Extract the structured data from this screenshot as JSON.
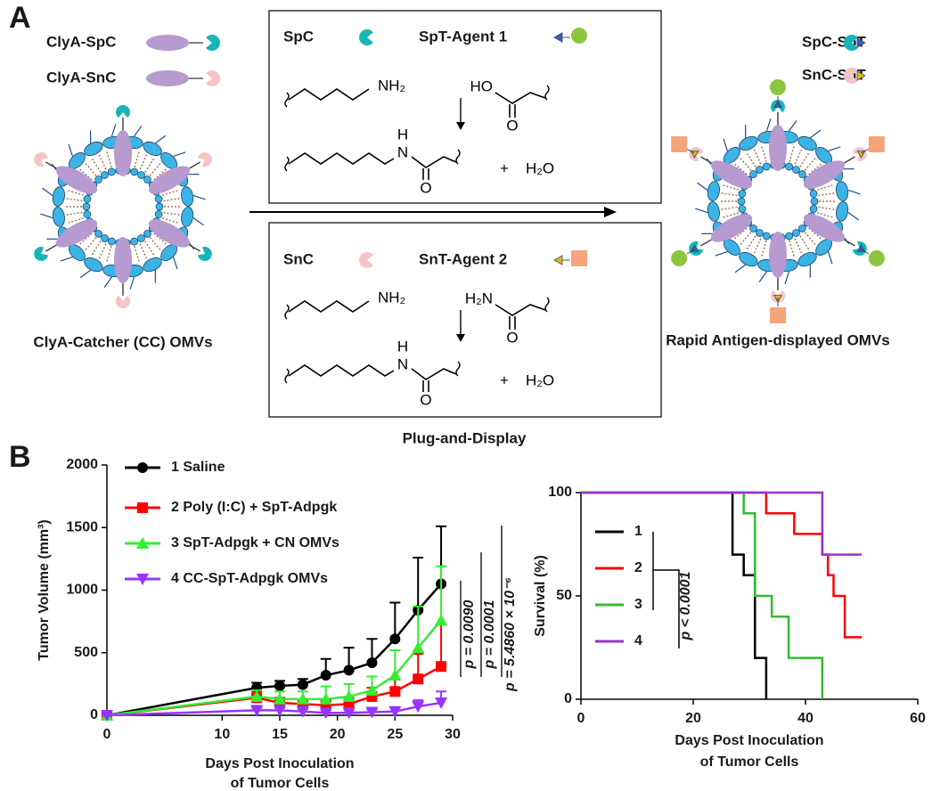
{
  "panel_labels": [
    "A",
    "B"
  ],
  "panel_a": {
    "left": {
      "legend": [
        "ClyA-SpC",
        "ClyA-SnC"
      ],
      "caption": "ClyA-Catcher (CC) OMVs"
    },
    "box1": {
      "catcher": "SpC",
      "tag": "SpT-Agent 1",
      "amine": "NH₂",
      "acid": "HO",
      "oxygen": "O",
      "product_h": "H",
      "product_n": "N",
      "product_o": "O",
      "plus": "+",
      "water": "H₂O"
    },
    "box2": {
      "catcher": "SnC",
      "tag": "SnT-Agent 2",
      "amine": "NH₂",
      "amide": "H₂N",
      "oxygen": "O",
      "product_h": "H",
      "product_n": "N",
      "product_o": "O",
      "plus": "+",
      "water": "H₂O"
    },
    "process": "Plug-and-Display",
    "right": {
      "legend": [
        "SpC-SpT",
        "SnC-SnT"
      ],
      "caption": "Rapid Antigen-displayed OMVs"
    }
  },
  "chart_data": [
    {
      "type": "line",
      "y_label": "Tumor Volume (mm³)",
      "x_label": [
        "Days Post Inoculation",
        "of Tumor Cells"
      ],
      "x": [
        0,
        13,
        15,
        17,
        19,
        21,
        23,
        25,
        27,
        29
      ],
      "series": [
        {
          "name": "1 Saline",
          "color": "#000000",
          "marker": "circle",
          "values": [
            0,
            220,
            235,
            245,
            320,
            360,
            420,
            610,
            840,
            1050
          ],
          "errors": [
            0,
            40,
            40,
            45,
            130,
            180,
            190,
            290,
            420,
            460
          ]
        },
        {
          "name": "2 Poly (I:C) + SpT-Adpgk",
          "color": "#ff0000",
          "marker": "square",
          "values": [
            0,
            140,
            100,
            90,
            80,
            90,
            150,
            190,
            290,
            390
          ],
          "errors": [
            0,
            50,
            40,
            40,
            40,
            50,
            70,
            100,
            200,
            340
          ]
        },
        {
          "name": "3 SpT-Adpgk + CN OMVs",
          "color": "#33ee33",
          "marker": "triangle-up",
          "values": [
            0,
            150,
            130,
            130,
            130,
            150,
            200,
            320,
            540,
            760
          ],
          "errors": [
            0,
            50,
            60,
            60,
            100,
            100,
            110,
            200,
            330,
            430
          ]
        },
        {
          "name": "4 CC-SpT-Adpgk OMVs",
          "color": "#9933ff",
          "marker": "triangle-down",
          "values": [
            0,
            40,
            40,
            30,
            20,
            20,
            25,
            30,
            70,
            100
          ],
          "errors": [
            0,
            20,
            20,
            20,
            20,
            20,
            20,
            30,
            50,
            90
          ]
        }
      ],
      "xlim": [
        0,
        30
      ],
      "xticks": [
        0,
        10,
        15,
        20,
        25,
        30
      ],
      "ylim": [
        0,
        2000
      ],
      "yticks": [
        0,
        500,
        1000,
        1500,
        2000
      ],
      "annotations": [
        "p = 0.0090",
        "p = 0.0001",
        "p = 5.4860 × 10⁻⁶"
      ]
    },
    {
      "type": "line",
      "y_label": "Survival (%)",
      "x_label": [
        "Days Post Inoculation",
        "of Tumor Cells"
      ],
      "series": [
        {
          "name": "1",
          "color": "#000000",
          "x": [
            0,
            27,
            27,
            29,
            29,
            31,
            31,
            33,
            33
          ],
          "values": [
            100,
            100,
            70,
            70,
            60,
            60,
            20,
            20,
            0
          ]
        },
        {
          "name": "2",
          "color": "#ff0000",
          "x": [
            0,
            33,
            33,
            38,
            38,
            43,
            43,
            44,
            44,
            45,
            45,
            47,
            47,
            50
          ],
          "values": [
            100,
            100,
            90,
            90,
            80,
            80,
            70,
            70,
            60,
            60,
            50,
            50,
            30,
            30
          ]
        },
        {
          "name": "3",
          "color": "#33bb33",
          "x": [
            0,
            29,
            29,
            31,
            31,
            34,
            34,
            37,
            37,
            43,
            43
          ],
          "values": [
            100,
            100,
            90,
            90,
            50,
            50,
            40,
            40,
            20,
            20,
            0
          ]
        },
        {
          "name": "4",
          "color": "#9933cc",
          "x": [
            0,
            43,
            43,
            50
          ],
          "values": [
            100,
            100,
            70,
            70
          ]
        }
      ],
      "xlim": [
        0,
        60
      ],
      "xticks": [
        0,
        20,
        40,
        60
      ],
      "ylim": [
        0,
        100
      ],
      "yticks": [
        0,
        50,
        100
      ],
      "annotations": [
        "p < 0.0001"
      ]
    }
  ]
}
